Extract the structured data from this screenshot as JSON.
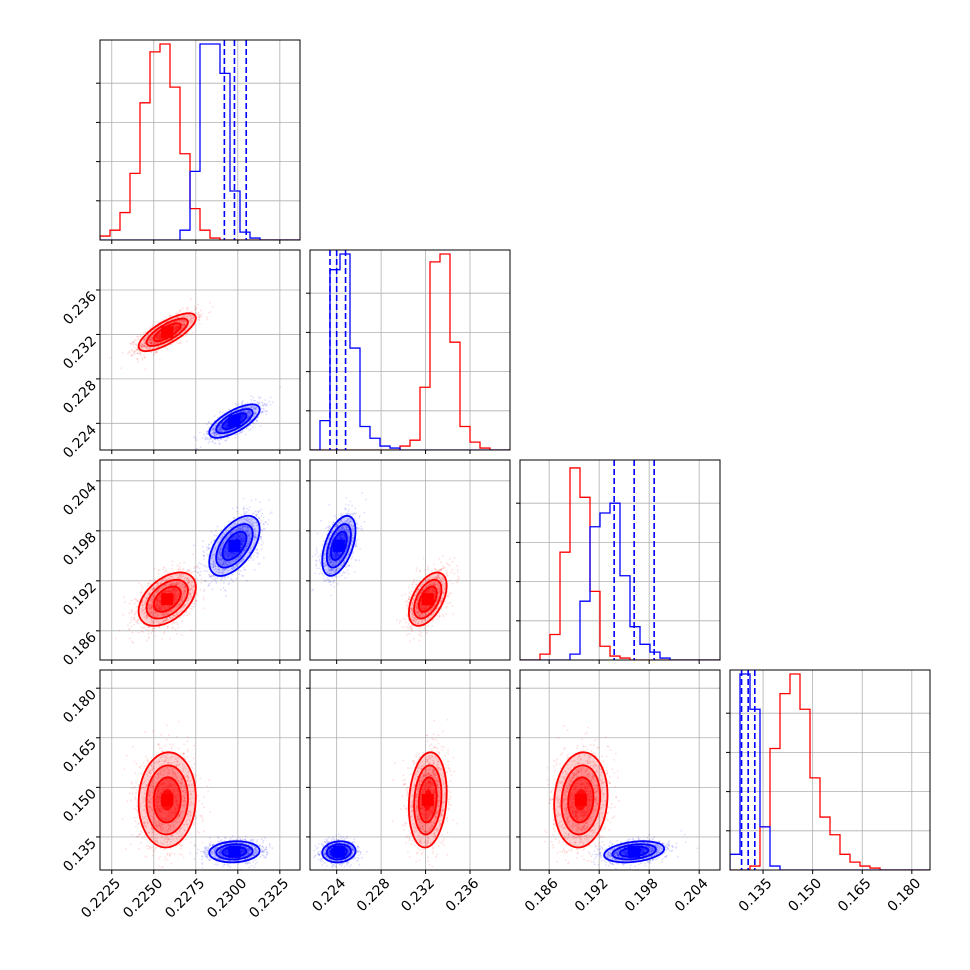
{
  "chart_data": {
    "type": "scatter",
    "layout": "corner",
    "title": "",
    "grid": true,
    "parameters": [
      {
        "name": "",
        "range": [
          0.2218,
          0.2337
        ],
        "ticks": [
          0.2225,
          0.225,
          0.2275,
          0.23,
          0.2325
        ],
        "tick_labels": [
          "0.2225",
          "0.2250",
          "0.2275",
          "0.2300",
          "0.2325"
        ]
      },
      {
        "name": "",
        "range": [
          0.2216,
          0.2396
        ],
        "ticks": [
          0.224,
          0.228,
          0.232,
          0.236
        ],
        "tick_labels": [
          "0.224",
          "0.228",
          "0.232",
          "0.236"
        ]
      },
      {
        "name": "",
        "range": [
          0.1825,
          0.2065
        ],
        "ticks": [
          0.186,
          0.192,
          0.198,
          0.204
        ],
        "tick_labels": [
          "0.186",
          "0.192",
          "0.198",
          "0.204"
        ]
      },
      {
        "name": "",
        "range": [
          0.125,
          0.1855
        ],
        "ticks": [
          0.135,
          0.15,
          0.165,
          0.18
        ],
        "tick_labels": [
          "0.135",
          "0.150",
          "0.165",
          "0.180"
        ]
      }
    ],
    "series": [
      {
        "color": "#ff0000",
        "mean": [
          0.2258,
          0.2322,
          0.1898,
          0.1462
        ],
        "std": [
          0.00085,
          0.00085,
          0.0016,
          0.0072
        ],
        "corr": {
          "0-1": 0.75,
          "0-2": 0.45,
          "0-3": 0.05,
          "1-2": 0.5,
          "1-3": 0.15,
          "2-3": 0.1
        },
        "quantiles": [],
        "hist": [
          [
            0.02,
            0.05,
            0.14,
            0.34,
            0.7,
            0.96,
            1.0,
            0.78,
            0.44,
            0.16,
            0.05,
            0.01,
            0,
            0,
            0,
            0,
            0,
            0,
            0,
            0
          ],
          [
            0,
            0,
            0,
            0,
            0,
            0,
            0,
            0,
            0,
            0.02,
            0.05,
            0.32,
            0.96,
            1.0,
            0.55,
            0.12,
            0.04,
            0.01,
            0,
            0
          ],
          [
            0,
            0,
            0.03,
            0.13,
            0.55,
            0.98,
            0.83,
            0.35,
            0.07,
            0.02,
            0.01,
            0,
            0,
            0,
            0,
            0,
            0,
            0,
            0,
            0
          ],
          [
            0,
            0,
            0.02,
            0.22,
            0.62,
            0.9,
            1.0,
            0.82,
            0.47,
            0.27,
            0.18,
            0.08,
            0.04,
            0.02,
            0.01,
            0,
            0,
            0,
            0,
            0
          ]
        ]
      },
      {
        "color": "#0000ff",
        "mean": [
          0.2298,
          0.2242,
          0.1962,
          0.1305
        ],
        "std": [
          0.00075,
          0.00075,
          0.0018,
          0.0016
        ],
        "corr": {
          "0-1": 0.7,
          "0-2": 0.55,
          "0-3": 0.1,
          "1-2": 0.5,
          "1-3": 0.1,
          "2-3": 0.3
        },
        "quantiles": [
          [
            0.2292,
            0.2298,
            0.2305
          ],
          [
            0.2234,
            0.224,
            0.2248
          ],
          [
            0.1938,
            0.1962,
            0.1986
          ],
          [
            0.1285,
            0.1305,
            0.1325
          ]
        ],
        "hist": [
          [
            0,
            0,
            0,
            0,
            0,
            0,
            0,
            0,
            0.05,
            0.35,
            1.0,
            1.0,
            0.85,
            0.25,
            0.04,
            0.01,
            0,
            0,
            0,
            0
          ],
          [
            0,
            0.15,
            0.92,
            1.0,
            0.52,
            0.12,
            0.06,
            0.02,
            0.01,
            0,
            0,
            0,
            0,
            0,
            0,
            0,
            0,
            0,
            0,
            0
          ],
          [
            0,
            0,
            0,
            0,
            0,
            0.03,
            0.3,
            0.68,
            0.75,
            0.8,
            0.43,
            0.17,
            0.08,
            0.04,
            0.01,
            0,
            0,
            0,
            0,
            0
          ],
          [
            0.08,
            1.0,
            0.82,
            0.22,
            0.02,
            0,
            0,
            0,
            0,
            0,
            0,
            0,
            0,
            0,
            0,
            0,
            0,
            0,
            0,
            0
          ]
        ]
      }
    ]
  }
}
